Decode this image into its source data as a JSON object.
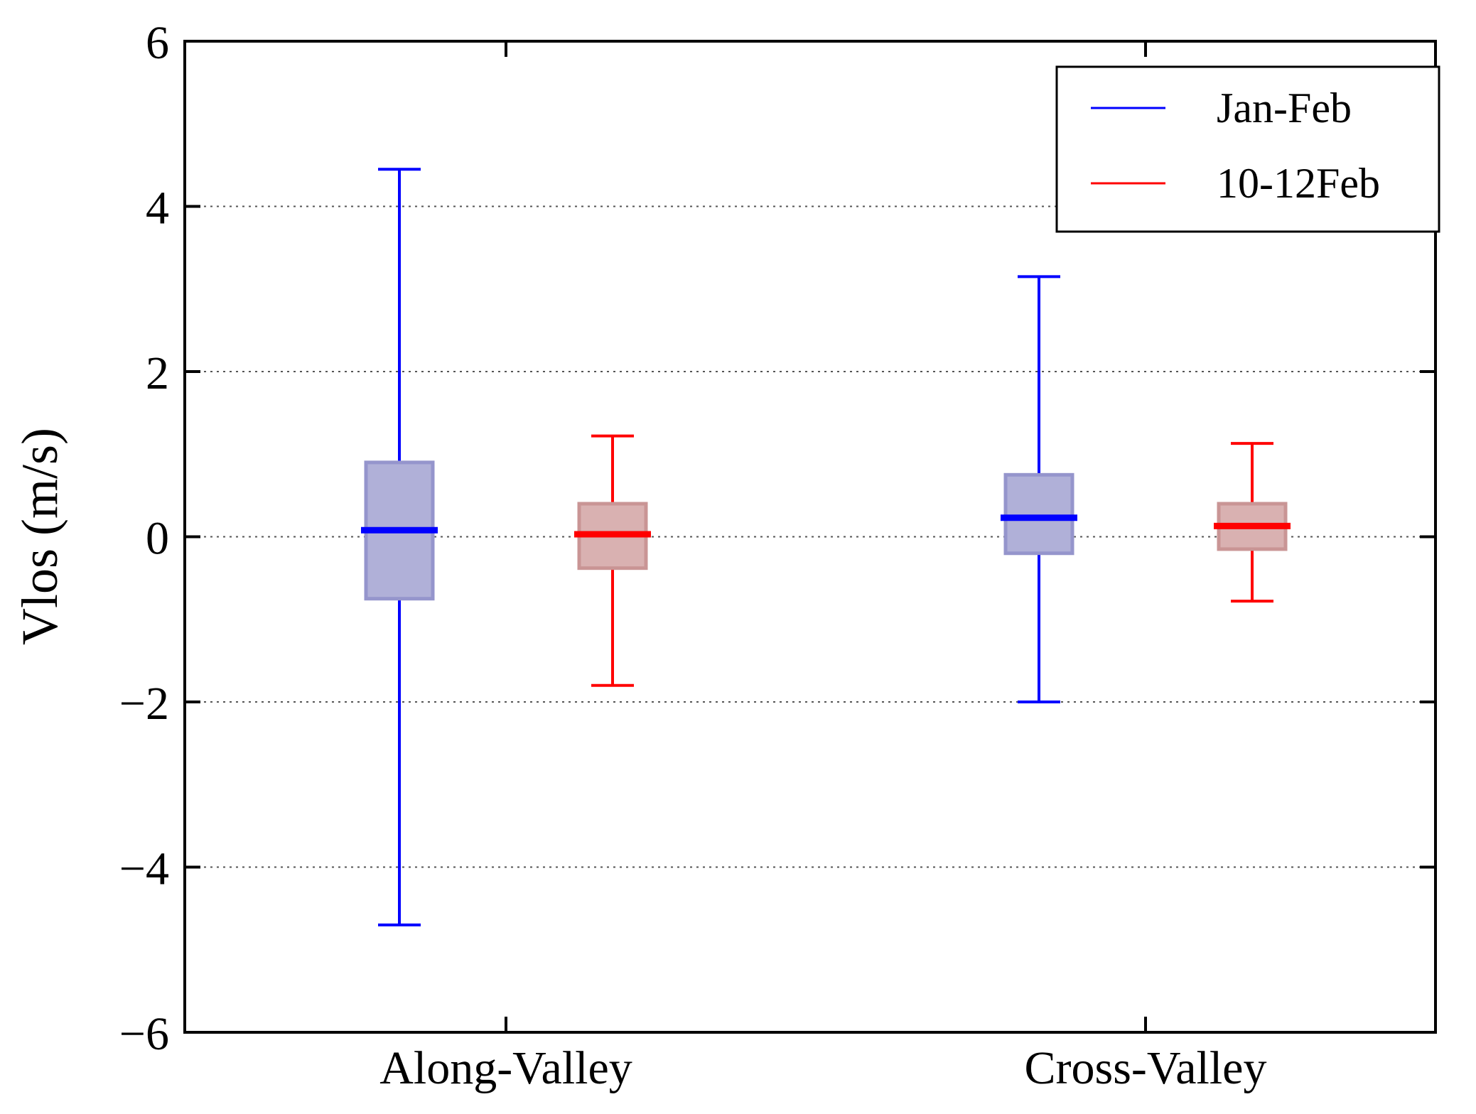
{
  "chart_data": {
    "type": "box",
    "title": "",
    "xlabel": "",
    "ylabel": "Vlos (m/s)",
    "ylim": [
      -6,
      6
    ],
    "yticks": [
      6,
      4,
      2,
      0,
      -2,
      -4,
      -6
    ],
    "ytick_labels": [
      "6",
      "4",
      "2",
      "0",
      "−2",
      "−4",
      "−6"
    ],
    "grid": "horizontal-dotted",
    "categories": [
      "Along-Valley",
      "Cross-Valley"
    ],
    "legend_position": "top-right",
    "series": [
      {
        "name": "Jan-Feb",
        "color": "#0000ff",
        "fill": "#b0b0d8",
        "edge": "#9595cc",
        "boxes": [
          {
            "category": "Along-Valley",
            "whisker_low": -4.7,
            "q1": -0.75,
            "median": 0.08,
            "q3": 0.9,
            "whisker_high": 4.45
          },
          {
            "category": "Cross-Valley",
            "whisker_low": -2.0,
            "q1": -0.2,
            "median": 0.23,
            "q3": 0.75,
            "whisker_high": 3.15
          }
        ]
      },
      {
        "name": "10-12Feb",
        "color": "#ff0000",
        "fill": "#d9b1b1",
        "edge": "#c99595",
        "boxes": [
          {
            "category": "Along-Valley",
            "whisker_low": -1.8,
            "q1": -0.38,
            "median": 0.03,
            "q3": 0.4,
            "whisker_high": 1.22
          },
          {
            "category": "Cross-Valley",
            "whisker_low": -0.78,
            "q1": -0.15,
            "median": 0.13,
            "q3": 0.4,
            "whisker_high": 1.13
          }
        ]
      }
    ]
  }
}
